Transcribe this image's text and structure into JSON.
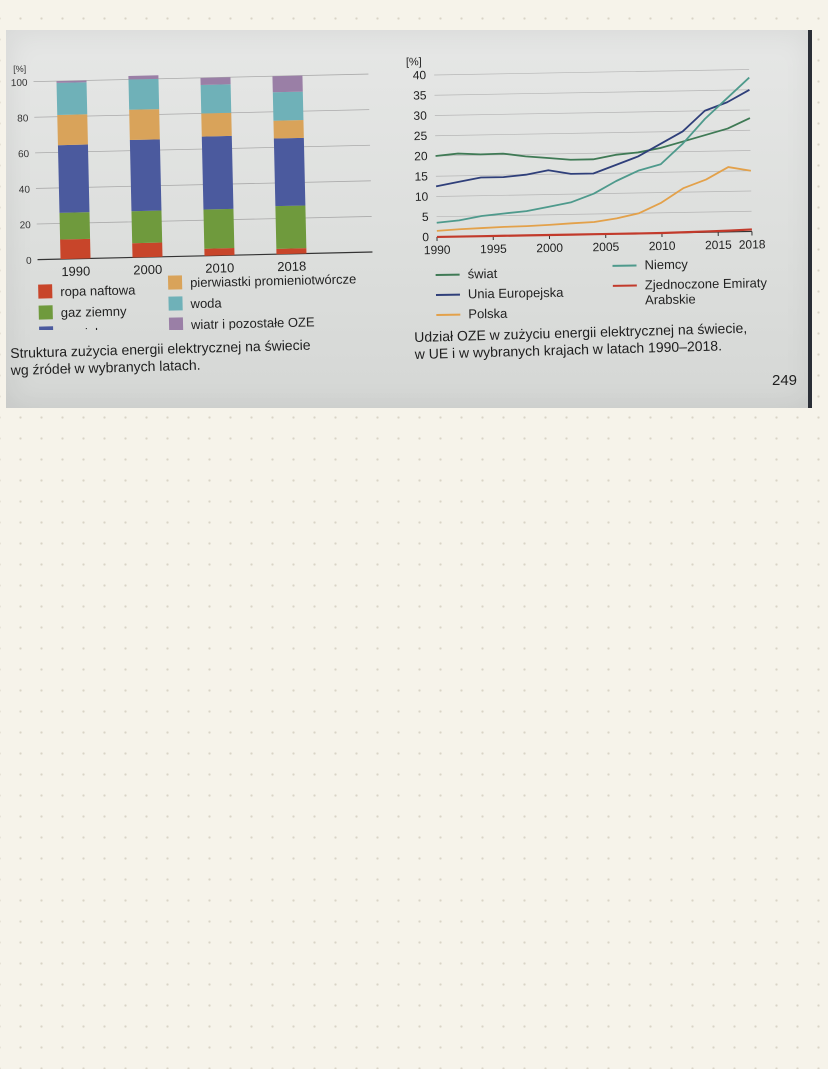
{
  "colors": {
    "ropa_naftowa": "#c8452a",
    "gaz_ziemny": "#6f9a3d",
    "wegiel": "#4b5a9e",
    "pierwiastki": "#d9a35a",
    "woda": "#6fb1b8",
    "wiatr": "#9a7fa6",
    "swiat": "#3f7a55",
    "ue": "#2f3f7a",
    "polska": "#e3a14a",
    "niemcy": "#4e9a8c",
    "zea": "#c23a2b"
  },
  "chart_data": [
    {
      "type": "bar",
      "stacked": true,
      "ylabel": "[%]",
      "ylim": [
        0,
        100
      ],
      "yticks": [
        "0",
        "20",
        "40",
        "60",
        "80",
        "100"
      ],
      "categories": [
        "1990",
        "2000",
        "2010",
        "2018"
      ],
      "series": [
        {
          "name": "ropa naftowa",
          "values": [
            11,
            8,
            4,
            3
          ]
        },
        {
          "name": "gaz ziemny",
          "values": [
            15,
            18,
            22,
            24
          ]
        },
        {
          "name": "węgiel",
          "values": [
            38,
            40,
            41,
            38
          ]
        },
        {
          "name": "pierwiastki promieniotwórcze",
          "values": [
            17,
            17,
            13,
            10
          ]
        },
        {
          "name": "woda",
          "values": [
            18,
            17,
            16,
            16
          ]
        },
        {
          "name": "wiatr i pozostałe OZE",
          "values": [
            1,
            2,
            4,
            9
          ]
        }
      ],
      "legend_position": "bottom",
      "caption": "Struktura zużycia energii elektrycznej na świecie\nwg źródeł w wybranych latach."
    },
    {
      "type": "line",
      "ylabel": "[%]",
      "ylim": [
        0,
        40
      ],
      "xlim": [
        1990,
        2018
      ],
      "yticks": [
        "0",
        "5",
        "10",
        "15",
        "20",
        "25",
        "30",
        "35",
        "40"
      ],
      "xticks": [
        "1990",
        "1995",
        "2000",
        "2005",
        "2010",
        "2015",
        "2018"
      ],
      "x": [
        1990,
        1992,
        1994,
        1996,
        1998,
        2000,
        2002,
        2004,
        2006,
        2008,
        2010,
        2012,
        2014,
        2016,
        2018
      ],
      "series": [
        {
          "name": "świat",
          "values": [
            20,
            20.5,
            20.2,
            20.3,
            19.5,
            19,
            18.5,
            18.5,
            19.5,
            20,
            21,
            22.5,
            24,
            25.5,
            28
          ]
        },
        {
          "name": "Unia Europejska",
          "values": [
            12.5,
            13.5,
            14.5,
            14.5,
            15,
            16,
            15,
            15,
            17,
            19,
            22,
            25,
            30,
            32,
            35
          ]
        },
        {
          "name": "Polska",
          "values": [
            1.5,
            1.8,
            2,
            2.2,
            2.3,
            2.5,
            2.8,
            3,
            3.8,
            5,
            7.5,
            11,
            13,
            16,
            15
          ]
        },
        {
          "name": "Niemcy",
          "values": [
            3.5,
            4,
            5,
            5.5,
            6,
            7,
            8,
            10,
            13,
            15.5,
            17,
            22,
            28,
            33,
            38
          ]
        },
        {
          "name": "Zjednoczone Emiraty Arabskie",
          "values": [
            0,
            0,
            0,
            0,
            0,
            0,
            0,
            0,
            0,
            0,
            0,
            0.1,
            0.2,
            0.3,
            0.5
          ]
        }
      ],
      "legend_position": "bottom",
      "caption": "Udział OZE w zużyciu energii elektrycznej na świecie,\nw UE i w wybranych krajach w latach 1990–2018."
    }
  ],
  "legend_bar": [
    {
      "label": "ropa naftowa",
      "color": "#c8452a"
    },
    {
      "label": "gaz ziemny",
      "color": "#6f9a3d"
    },
    {
      "label": "węgiel",
      "color": "#4b5a9e"
    },
    {
      "label": "pierwiastki promieniotwórcze",
      "color": "#d9a35a"
    },
    {
      "label": "woda",
      "color": "#6fb1b8"
    },
    {
      "label": "wiatr i pozostałe OZE",
      "color": "#9a7fa6"
    }
  ],
  "legend_line": [
    {
      "label": "świat",
      "color": "#3f7a55"
    },
    {
      "label": "Unia Europejska",
      "color": "#2f3f7a"
    },
    {
      "label": "Polska",
      "color": "#e3a14a"
    },
    {
      "label": "Niemcy",
      "color": "#4e9a8c"
    },
    {
      "label": "Zjednoczone Emiraty\nArabskie",
      "color": "#c23a2b"
    }
  ],
  "page_number": "249"
}
